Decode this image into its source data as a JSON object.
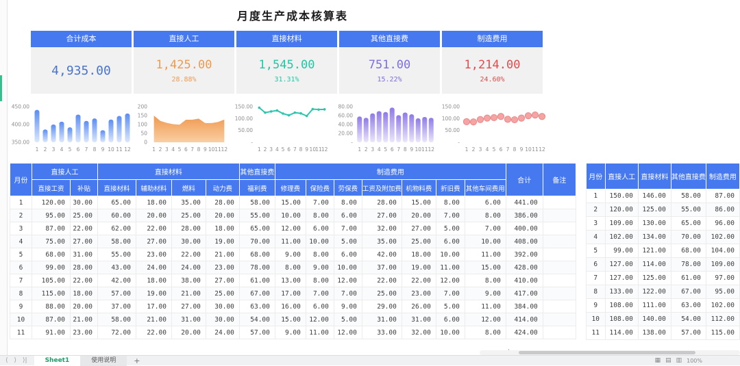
{
  "title": "月度生产成本核算表",
  "kpi": {
    "header_bg": "#4678f0",
    "cards": [
      {
        "label": "合计成本",
        "value": "4,935.00",
        "pct": "",
        "value_color": "#4a74c8"
      },
      {
        "label": "直接人工",
        "value": "1,425.00",
        "pct": "28.88%",
        "value_color": "#ee9a4e"
      },
      {
        "label": "直接材料",
        "value": "1,545.00",
        "pct": "31.31%",
        "value_color": "#1fc7a3"
      },
      {
        "label": "其他直接费",
        "value": "751.00",
        "pct": "15.22%",
        "value_color": "#7b6ee0"
      },
      {
        "label": "制造费用",
        "value": "1,214.00",
        "pct": "24.60%",
        "value_color": "#e04b4b"
      }
    ]
  },
  "months": [
    "1",
    "2",
    "3",
    "4",
    "5",
    "6",
    "7",
    "8",
    "9",
    "10",
    "11",
    "12"
  ],
  "chart_data": [
    {
      "type": "bar",
      "name": "total-cost-by-month",
      "values": [
        441,
        386,
        400,
        408,
        392,
        428,
        410,
        417,
        384,
        414,
        424,
        431
      ],
      "ylim": [
        350,
        450
      ],
      "yticks": [
        [
          350,
          "350.00"
        ],
        [
          400,
          "400.00"
        ],
        [
          450,
          "450.00"
        ]
      ],
      "color_top": "#5b8df5",
      "color_bottom": "#dce8fc"
    },
    {
      "type": "area",
      "name": "direct-labor-by-month",
      "values": [
        150,
        120,
        109,
        102,
        99,
        127,
        127,
        133,
        108,
        108,
        114,
        128
      ],
      "ylim": [
        0,
        200
      ],
      "yticks": [
        [
          0,
          "0"
        ],
        [
          50,
          "50"
        ],
        [
          100,
          "100"
        ],
        [
          150,
          "150"
        ],
        [
          200,
          "200"
        ]
      ],
      "color_top": "#f0994e",
      "color_bottom": "#f9cfa4"
    },
    {
      "type": "line",
      "name": "direct-material-by-month",
      "values": [
        146,
        125,
        130,
        134,
        121,
        114,
        125,
        122,
        111,
        140,
        138,
        139
      ],
      "ylim": [
        0,
        150
      ],
      "yticks": [
        [
          0,
          "-"
        ],
        [
          50,
          "50.00"
        ],
        [
          100,
          "100.00"
        ],
        [
          150,
          "150.00"
        ]
      ],
      "color_top": "#2cc5ad",
      "color_bottom": "#2cc5ad"
    },
    {
      "type": "bar",
      "name": "other-direct-cost-by-month",
      "values": [
        58,
        55,
        65,
        70,
        68,
        78,
        61,
        67,
        63,
        54,
        57,
        55
      ],
      "ylim": [
        0,
        80
      ],
      "yticks": [
        [
          0,
          "-"
        ],
        [
          20,
          "20.00"
        ],
        [
          40,
          "40.00"
        ],
        [
          60,
          "60.00"
        ],
        [
          80,
          "80.00"
        ]
      ],
      "color_top": "#8f7ae8",
      "color_bottom": "#ece6fb"
    },
    {
      "type": "scatter",
      "name": "manufacturing-cost-by-month",
      "values": [
        87,
        86,
        96,
        102,
        104,
        109,
        97,
        95,
        102,
        112,
        115,
        109
      ],
      "ylim": [
        0,
        150
      ],
      "yticks": [
        [
          0,
          "-"
        ],
        [
          50,
          "50.00"
        ],
        [
          100,
          "100.00"
        ],
        [
          150,
          "150.00"
        ]
      ],
      "color_top": "#f5a3a3",
      "color_bottom": "#e98888"
    }
  ],
  "main_table": {
    "group_header": [
      {
        "label": "月份",
        "rowspan": 2
      },
      {
        "label": "直接人工",
        "colspan": 2
      },
      {
        "label": "直接材料",
        "colspan": 4
      },
      {
        "label": "其他直接费",
        "colspan": 1
      },
      {
        "label": "制造费用",
        "colspan": 7
      },
      {
        "label": "合计",
        "rowspan": 2
      },
      {
        "label": "备注",
        "rowspan": 2
      }
    ],
    "sub_header": [
      "直接工资",
      "补贴",
      "直接材料",
      "辅助材料",
      "燃料",
      "动力费",
      "福利费",
      "修理费",
      "保险费",
      "劳保费",
      "工资及附加费",
      "机物料费",
      "折旧费",
      "其他车间费用"
    ],
    "rows": [
      [
        "1",
        "120.00",
        "30.00",
        "65.00",
        "18.00",
        "35.00",
        "28.00",
        "58.00",
        "15.00",
        "7.00",
        "8.00",
        "28.00",
        "15.00",
        "8.00",
        "6.00",
        "441.00",
        ""
      ],
      [
        "2",
        "95.00",
        "25.00",
        "60.00",
        "20.00",
        "25.00",
        "20.00",
        "55.00",
        "10.00",
        "8.00",
        "6.00",
        "27.00",
        "20.00",
        "7.00",
        "8.00",
        "386.00",
        ""
      ],
      [
        "3",
        "87.00",
        "22.00",
        "62.00",
        "22.00",
        "28.00",
        "18.00",
        "65.00",
        "12.00",
        "6.00",
        "7.00",
        "32.00",
        "27.00",
        "5.00",
        "7.00",
        "400.00",
        ""
      ],
      [
        "4",
        "75.00",
        "27.00",
        "58.00",
        "27.00",
        "30.00",
        "19.00",
        "70.00",
        "11.00",
        "10.00",
        "5.00",
        "35.00",
        "25.00",
        "6.00",
        "10.00",
        "408.00",
        ""
      ],
      [
        "5",
        "68.00",
        "31.00",
        "55.00",
        "23.00",
        "22.00",
        "21.00",
        "68.00",
        "9.00",
        "8.00",
        "6.00",
        "42.00",
        "18.00",
        "10.00",
        "11.00",
        "392.00",
        ""
      ],
      [
        "6",
        "99.00",
        "28.00",
        "43.00",
        "24.00",
        "24.00",
        "23.00",
        "78.00",
        "8.00",
        "9.00",
        "10.00",
        "37.00",
        "19.00",
        "11.00",
        "15.00",
        "428.00",
        ""
      ],
      [
        "7",
        "105.00",
        "22.00",
        "42.00",
        "18.00",
        "38.00",
        "27.00",
        "61.00",
        "13.00",
        "8.00",
        "12.00",
        "22.00",
        "22.00",
        "12.00",
        "8.00",
        "410.00",
        ""
      ],
      [
        "8",
        "115.00",
        "18.00",
        "57.00",
        "19.00",
        "21.00",
        "25.00",
        "67.00",
        "17.00",
        "7.00",
        "7.00",
        "25.00",
        "23.00",
        "7.00",
        "9.00",
        "417.00",
        ""
      ],
      [
        "9",
        "88.00",
        "20.00",
        "37.00",
        "17.00",
        "27.00",
        "30.00",
        "63.00",
        "16.00",
        "6.00",
        "9.00",
        "29.00",
        "26.00",
        "5.00",
        "11.00",
        "384.00",
        ""
      ],
      [
        "10",
        "87.00",
        "21.00",
        "58.00",
        "21.00",
        "31.00",
        "30.00",
        "54.00",
        "15.00",
        "12.00",
        "5.00",
        "31.00",
        "31.00",
        "6.00",
        "12.00",
        "414.00",
        ""
      ],
      [
        "11",
        "91.00",
        "23.00",
        "72.00",
        "22.00",
        "20.00",
        "24.00",
        "57.00",
        "9.00",
        "11.00",
        "12.00",
        "33.00",
        "32.00",
        "10.00",
        "8.00",
        "424.00",
        ""
      ]
    ]
  },
  "summary_table": {
    "headers": [
      "月份",
      "直接人工",
      "直接材料",
      "其他直接费",
      "制造费用"
    ],
    "rows": [
      [
        "1",
        "150.00",
        "146.00",
        "58.00",
        "87.00"
      ],
      [
        "2",
        "120.00",
        "125.00",
        "55.00",
        "86.00"
      ],
      [
        "3",
        "109.00",
        "130.00",
        "65.00",
        "96.00"
      ],
      [
        "4",
        "102.00",
        "134.00",
        "70.00",
        "102.00"
      ],
      [
        "5",
        "99.00",
        "121.00",
        "68.00",
        "104.00"
      ],
      [
        "6",
        "127.00",
        "114.00",
        "78.00",
        "109.00"
      ],
      [
        "7",
        "127.00",
        "125.00",
        "61.00",
        "97.00"
      ],
      [
        "8",
        "133.00",
        "122.00",
        "67.00",
        "95.00"
      ],
      [
        "9",
        "108.00",
        "111.00",
        "63.00",
        "102.00"
      ],
      [
        "10",
        "108.00",
        "140.00",
        "54.00",
        "112.00"
      ],
      [
        "11",
        "114.00",
        "138.00",
        "57.00",
        "115.00"
      ]
    ]
  },
  "sheet_tabs": {
    "items": [
      {
        "label": "Sheet1",
        "active": true
      },
      {
        "label": "使用说明",
        "active": false
      }
    ],
    "add_label": "+"
  },
  "status_bar": {
    "zoom": "100%"
  }
}
